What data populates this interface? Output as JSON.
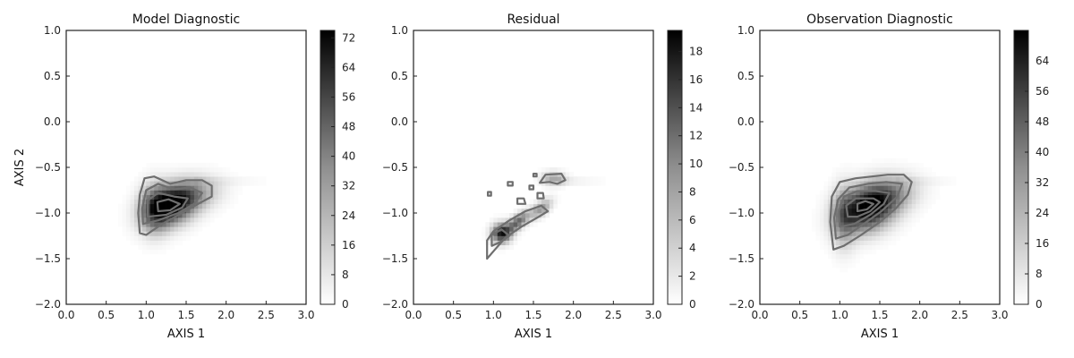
{
  "chart_data": [
    {
      "type": "heatmap",
      "title": "Model Diagnostic",
      "xlabel": "AXIS 1",
      "ylabel": "AXIS 2",
      "xlim": [
        0.0,
        3.0
      ],
      "ylim": [
        -2.0,
        1.0
      ],
      "x_ticks": [
        0.0,
        0.5,
        1.0,
        1.5,
        2.0,
        2.5,
        3.0
      ],
      "x_tick_labels": [
        "0.0",
        "0.5",
        "1.0",
        "1.5",
        "2.0",
        "2.5",
        "3.0"
      ],
      "y_ticks": [
        -2.0,
        -1.5,
        -1.0,
        -0.5,
        0.0,
        0.5,
        1.0
      ],
      "y_tick_labels": [
        "−2.0",
        "−1.5",
        "−1.0",
        "−0.5",
        "0.0",
        "0.5",
        "1.0"
      ],
      "colorbar": {
        "min": 0,
        "max": 74,
        "ticks": [
          0,
          8,
          16,
          24,
          32,
          40,
          48,
          56,
          64,
          72
        ],
        "tick_labels": [
          "0",
          "8",
          "16",
          "24",
          "32",
          "40",
          "48",
          "56",
          "64",
          "72"
        ]
      },
      "density_blobs": [
        {
          "cx": 1.3,
          "cy": -0.92,
          "sx": 0.22,
          "sy": 0.14,
          "rot": 20,
          "amp": 70
        },
        {
          "cx": 1.55,
          "cy": -0.8,
          "sx": 0.25,
          "sy": 0.12,
          "rot": 10,
          "amp": 25
        },
        {
          "cx": 1.1,
          "cy": -0.95,
          "sx": 0.12,
          "sy": 0.18,
          "rot": 0,
          "amp": 30
        }
      ],
      "streaks": [
        {
          "y": -0.65,
          "x0": 1.6,
          "x1": 2.7,
          "amp": 6
        }
      ],
      "contours": [
        [
          [
            0.92,
            -1.22
          ],
          [
            0.9,
            -1.0
          ],
          [
            0.92,
            -0.8
          ],
          [
            0.98,
            -0.62
          ],
          [
            1.1,
            -0.6
          ],
          [
            1.3,
            -0.68
          ],
          [
            1.5,
            -0.64
          ],
          [
            1.7,
            -0.64
          ],
          [
            1.82,
            -0.7
          ],
          [
            1.82,
            -0.82
          ],
          [
            1.65,
            -0.9
          ],
          [
            1.45,
            -1.0
          ],
          [
            1.2,
            -1.12
          ],
          [
            1.0,
            -1.24
          ],
          [
            0.92,
            -1.22
          ]
        ],
        [
          [
            0.96,
            -1.12
          ],
          [
            0.95,
            -0.95
          ],
          [
            1.0,
            -0.75
          ],
          [
            1.15,
            -0.68
          ],
          [
            1.35,
            -0.74
          ],
          [
            1.55,
            -0.72
          ],
          [
            1.7,
            -0.78
          ],
          [
            1.6,
            -0.9
          ],
          [
            1.4,
            -1.0
          ],
          [
            1.15,
            -1.08
          ],
          [
            0.96,
            -1.12
          ]
        ],
        [
          [
            1.02,
            -1.04
          ],
          [
            1.02,
            -0.86
          ],
          [
            1.15,
            -0.78
          ],
          [
            1.35,
            -0.82
          ],
          [
            1.52,
            -0.84
          ],
          [
            1.45,
            -0.94
          ],
          [
            1.25,
            -1.02
          ],
          [
            1.02,
            -1.04
          ]
        ],
        [
          [
            1.15,
            -0.98
          ],
          [
            1.14,
            -0.88
          ],
          [
            1.28,
            -0.85
          ],
          [
            1.42,
            -0.9
          ],
          [
            1.3,
            -0.97
          ],
          [
            1.15,
            -0.98
          ]
        ]
      ]
    },
    {
      "type": "heatmap",
      "title": "Residual",
      "xlabel": "AXIS 1",
      "ylabel": "",
      "xlim": [
        0.0,
        3.0
      ],
      "ylim": [
        -2.0,
        1.0
      ],
      "x_ticks": [
        0.0,
        0.5,
        1.0,
        1.5,
        2.0,
        2.5,
        3.0
      ],
      "x_tick_labels": [
        "0.0",
        "0.5",
        "1.0",
        "1.5",
        "2.0",
        "2.5",
        "3.0"
      ],
      "y_ticks": [
        -2.0,
        -1.5,
        -1.0,
        -0.5,
        0.0,
        0.5,
        1.0
      ],
      "y_tick_labels": [
        "−2.0",
        "−1.5",
        "−1.0",
        "−0.5",
        "0.0",
        "0.5",
        "1.0"
      ],
      "colorbar": {
        "min": 0,
        "max": 19.5,
        "ticks": [
          0,
          2,
          4,
          6,
          8,
          10,
          12,
          14,
          16,
          18
        ],
        "tick_labels": [
          "0",
          "2",
          "4",
          "6",
          "8",
          "10",
          "12",
          "14",
          "16",
          "18"
        ]
      },
      "density_blobs": [
        {
          "cx": 1.1,
          "cy": -1.22,
          "sx": 0.08,
          "sy": 0.07,
          "rot": 0,
          "amp": 17
        },
        {
          "cx": 1.3,
          "cy": -1.1,
          "sx": 0.12,
          "sy": 0.05,
          "rot": 35,
          "amp": 12
        },
        {
          "cx": 1.6,
          "cy": -0.95,
          "sx": 0.1,
          "sy": 0.05,
          "rot": 35,
          "amp": 8
        },
        {
          "cx": 1.75,
          "cy": -0.62,
          "sx": 0.1,
          "sy": 0.05,
          "rot": 0,
          "amp": 7
        }
      ],
      "streaks": [
        {
          "y": -0.65,
          "x0": 1.8,
          "x1": 2.5,
          "amp": 2
        }
      ],
      "contours": [
        [
          [
            0.92,
            -1.5
          ],
          [
            0.92,
            -1.3
          ],
          [
            1.0,
            -1.2
          ],
          [
            1.2,
            -1.08
          ],
          [
            1.4,
            -0.98
          ],
          [
            1.6,
            -0.92
          ],
          [
            1.68,
            -0.98
          ],
          [
            1.55,
            -1.05
          ],
          [
            1.35,
            -1.15
          ],
          [
            1.15,
            -1.27
          ],
          [
            1.0,
            -1.42
          ],
          [
            0.92,
            -1.5
          ]
        ],
        [
          [
            0.98,
            -1.36
          ],
          [
            0.98,
            -1.24
          ],
          [
            1.1,
            -1.18
          ],
          [
            1.2,
            -1.25
          ],
          [
            1.08,
            -1.32
          ],
          [
            0.98,
            -1.36
          ]
        ],
        [
          [
            1.58,
            -0.67
          ],
          [
            1.65,
            -0.58
          ],
          [
            1.85,
            -0.57
          ],
          [
            1.9,
            -0.64
          ],
          [
            1.8,
            -0.68
          ],
          [
            1.7,
            -0.66
          ],
          [
            1.58,
            -0.67
          ]
        ],
        [
          [
            1.3,
            -0.9
          ],
          [
            1.3,
            -0.84
          ],
          [
            1.38,
            -0.84
          ],
          [
            1.4,
            -0.9
          ],
          [
            1.3,
            -0.9
          ]
        ],
        [
          [
            1.55,
            -0.84
          ],
          [
            1.55,
            -0.78
          ],
          [
            1.62,
            -0.78
          ],
          [
            1.63,
            -0.84
          ],
          [
            1.55,
            -0.84
          ]
        ],
        [
          [
            1.18,
            -0.7
          ],
          [
            1.18,
            -0.66
          ],
          [
            1.24,
            -0.66
          ],
          [
            1.24,
            -0.7
          ],
          [
            1.18,
            -0.7
          ]
        ],
        [
          [
            1.45,
            -0.74
          ],
          [
            1.45,
            -0.7
          ],
          [
            1.5,
            -0.7
          ],
          [
            1.5,
            -0.74
          ],
          [
            1.45,
            -0.74
          ]
        ],
        [
          [
            0.93,
            -0.81
          ],
          [
            0.93,
            -0.77
          ],
          [
            0.97,
            -0.77
          ],
          [
            0.97,
            -0.81
          ],
          [
            0.93,
            -0.81
          ]
        ],
        [
          [
            1.5,
            -0.6
          ],
          [
            1.5,
            -0.57
          ],
          [
            1.54,
            -0.57
          ],
          [
            1.54,
            -0.6
          ],
          [
            1.5,
            -0.6
          ]
        ]
      ]
    },
    {
      "type": "heatmap",
      "title": "Observation Diagnostic",
      "xlabel": "AXIS 1",
      "ylabel": "",
      "xlim": [
        0.0,
        3.0
      ],
      "ylim": [
        -2.0,
        1.0
      ],
      "x_ticks": [
        0.0,
        0.5,
        1.0,
        1.5,
        2.0,
        2.5,
        3.0
      ],
      "x_tick_labels": [
        "0.0",
        "0.5",
        "1.0",
        "1.5",
        "2.0",
        "2.5",
        "3.0"
      ],
      "y_ticks": [
        -2.0,
        -1.5,
        -1.0,
        -0.5,
        0.0,
        0.5,
        1.0
      ],
      "y_tick_labels": [
        "−2.0",
        "−1.5",
        "−1.0",
        "−0.5",
        "0.0",
        "0.5",
        "1.0"
      ],
      "colorbar": {
        "min": 0,
        "max": 72,
        "ticks": [
          0,
          8,
          16,
          24,
          32,
          40,
          48,
          56,
          64
        ],
        "tick_labels": [
          "0",
          "8",
          "16",
          "24",
          "32",
          "40",
          "48",
          "56",
          "64"
        ]
      },
      "density_blobs": [
        {
          "cx": 1.35,
          "cy": -0.95,
          "sx": 0.24,
          "sy": 0.16,
          "rot": 20,
          "amp": 70
        },
        {
          "cx": 1.6,
          "cy": -0.8,
          "sx": 0.25,
          "sy": 0.13,
          "rot": 10,
          "amp": 25
        },
        {
          "cx": 1.05,
          "cy": -1.05,
          "sx": 0.1,
          "sy": 0.22,
          "rot": 0,
          "amp": 25
        }
      ],
      "streaks": [
        {
          "y": -0.65,
          "x0": 1.7,
          "x1": 2.6,
          "amp": 6
        },
        {
          "y": -0.9,
          "x0": 0.95,
          "x1": 1.0,
          "amp": 4
        }
      ],
      "contours": [
        [
          [
            0.92,
            -1.4
          ],
          [
            0.88,
            -1.1
          ],
          [
            0.9,
            -0.82
          ],
          [
            1.0,
            -0.66
          ],
          [
            1.2,
            -0.62
          ],
          [
            1.4,
            -0.6
          ],
          [
            1.6,
            -0.58
          ],
          [
            1.8,
            -0.58
          ],
          [
            1.9,
            -0.66
          ],
          [
            1.85,
            -0.8
          ],
          [
            1.7,
            -0.95
          ],
          [
            1.5,
            -1.1
          ],
          [
            1.25,
            -1.25
          ],
          [
            1.05,
            -1.36
          ],
          [
            0.92,
            -1.4
          ]
        ],
        [
          [
            0.95,
            -1.28
          ],
          [
            0.93,
            -1.05
          ],
          [
            0.98,
            -0.85
          ],
          [
            1.12,
            -0.72
          ],
          [
            1.35,
            -0.68
          ],
          [
            1.58,
            -0.66
          ],
          [
            1.78,
            -0.68
          ],
          [
            1.72,
            -0.82
          ],
          [
            1.52,
            -0.98
          ],
          [
            1.3,
            -1.12
          ],
          [
            1.1,
            -1.24
          ],
          [
            0.95,
            -1.28
          ]
        ],
        [
          [
            1.0,
            -1.15
          ],
          [
            0.99,
            -0.98
          ],
          [
            1.05,
            -0.82
          ],
          [
            1.22,
            -0.76
          ],
          [
            1.45,
            -0.76
          ],
          [
            1.62,
            -0.78
          ],
          [
            1.55,
            -0.9
          ],
          [
            1.38,
            -1.02
          ],
          [
            1.18,
            -1.12
          ],
          [
            1.0,
            -1.15
          ]
        ],
        [
          [
            1.1,
            -1.04
          ],
          [
            1.08,
            -0.92
          ],
          [
            1.2,
            -0.84
          ],
          [
            1.42,
            -0.84
          ],
          [
            1.5,
            -0.88
          ],
          [
            1.38,
            -0.98
          ],
          [
            1.22,
            -1.04
          ],
          [
            1.1,
            -1.04
          ]
        ],
        [
          [
            1.22,
            -0.98
          ],
          [
            1.22,
            -0.9
          ],
          [
            1.32,
            -0.87
          ],
          [
            1.42,
            -0.9
          ],
          [
            1.34,
            -0.96
          ],
          [
            1.22,
            -0.98
          ]
        ]
      ]
    }
  ]
}
